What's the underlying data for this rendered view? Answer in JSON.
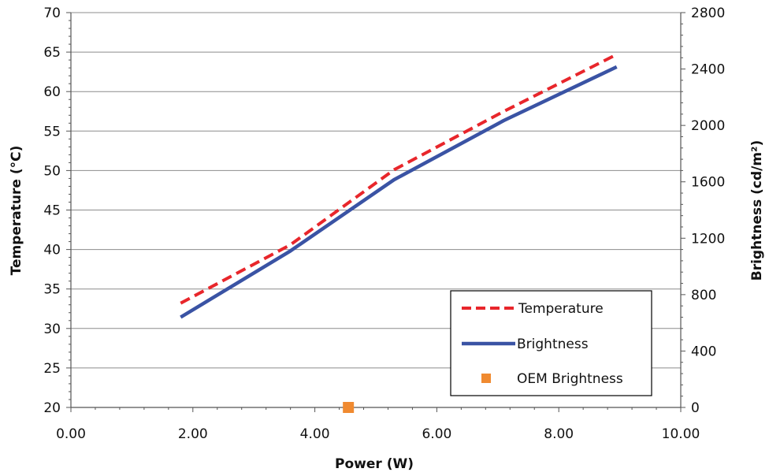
{
  "chart_data": {
    "type": "line",
    "xlabel": "Power (W)",
    "ylabel_left": "Temperature (°C)",
    "ylabel_right": "Brightness (cd/m²)",
    "xlim": [
      0,
      10
    ],
    "ylim_left": [
      20,
      70
    ],
    "ylim_right": [
      0,
      2800
    ],
    "x_tick_labels": [
      "0.00",
      "2.00",
      "4.00",
      "6.00",
      "8.00",
      "10.00"
    ],
    "y_left_tick_labels": [
      "20",
      "25",
      "30",
      "35",
      "40",
      "45",
      "50",
      "55",
      "60",
      "65",
      "70"
    ],
    "y_right_tick_labels": [
      "0",
      "400",
      "800",
      "1200",
      "1600",
      "2000",
      "2400",
      "2800"
    ],
    "grid": "horizontal",
    "legend_position": "bottom-right",
    "series": [
      {
        "name": "Temperature",
        "axis": "left",
        "color": "#e8262b",
        "style": "dashed",
        "x": [
          1.8,
          3.6,
          5.3,
          7.1,
          8.95
        ],
        "y": [
          33.2,
          40.6,
          50.1,
          57.5,
          64.7
        ]
      },
      {
        "name": "Brightness",
        "axis": "right",
        "color": "#3a53a4",
        "style": "solid",
        "x": [
          1.8,
          3.6,
          5.3,
          7.1,
          8.95
        ],
        "y": [
          640,
          1110,
          1615,
          2035,
          2415
        ]
      },
      {
        "name": "OEM Brightness",
        "axis": "right",
        "color": "#f08a30",
        "style": "marker",
        "x": [
          4.55
        ],
        "y": [
          0
        ]
      }
    ]
  }
}
